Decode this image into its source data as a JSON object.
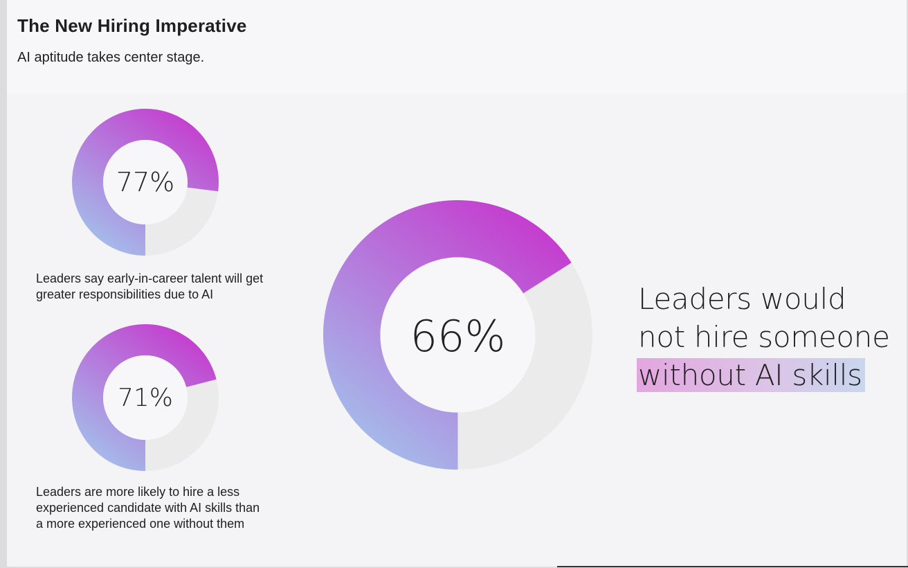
{
  "header": {
    "title": "The New Hiring Imperative",
    "subtitle": "AI aptitude takes center stage."
  },
  "stats": [
    {
      "value_label": "77%",
      "caption": "Leaders say early-in-career talent will get greater responsibilities due to AI"
    },
    {
      "value_label": "71%",
      "caption": "Leaders are more likely to hire a less experienced candidate with AI skills than a more experienced one without them"
    },
    {
      "value_label": "66%",
      "statement_line1": "Leaders would",
      "statement_line2": "not hire someone",
      "statement_highlight": "without AI skills"
    }
  ],
  "colors": {
    "gradient_start": "#c43fcf",
    "gradient_end": "#9fd0ee",
    "track": "#ebebeb",
    "hole": "#f7f7f9",
    "highlight": "#e3a6df"
  },
  "chart_data": [
    {
      "type": "pie",
      "values": [
        77,
        23
      ]
    },
    {
      "type": "pie",
      "values": [
        71,
        29
      ]
    },
    {
      "type": "pie",
      "values": [
        66,
        34
      ]
    }
  ]
}
